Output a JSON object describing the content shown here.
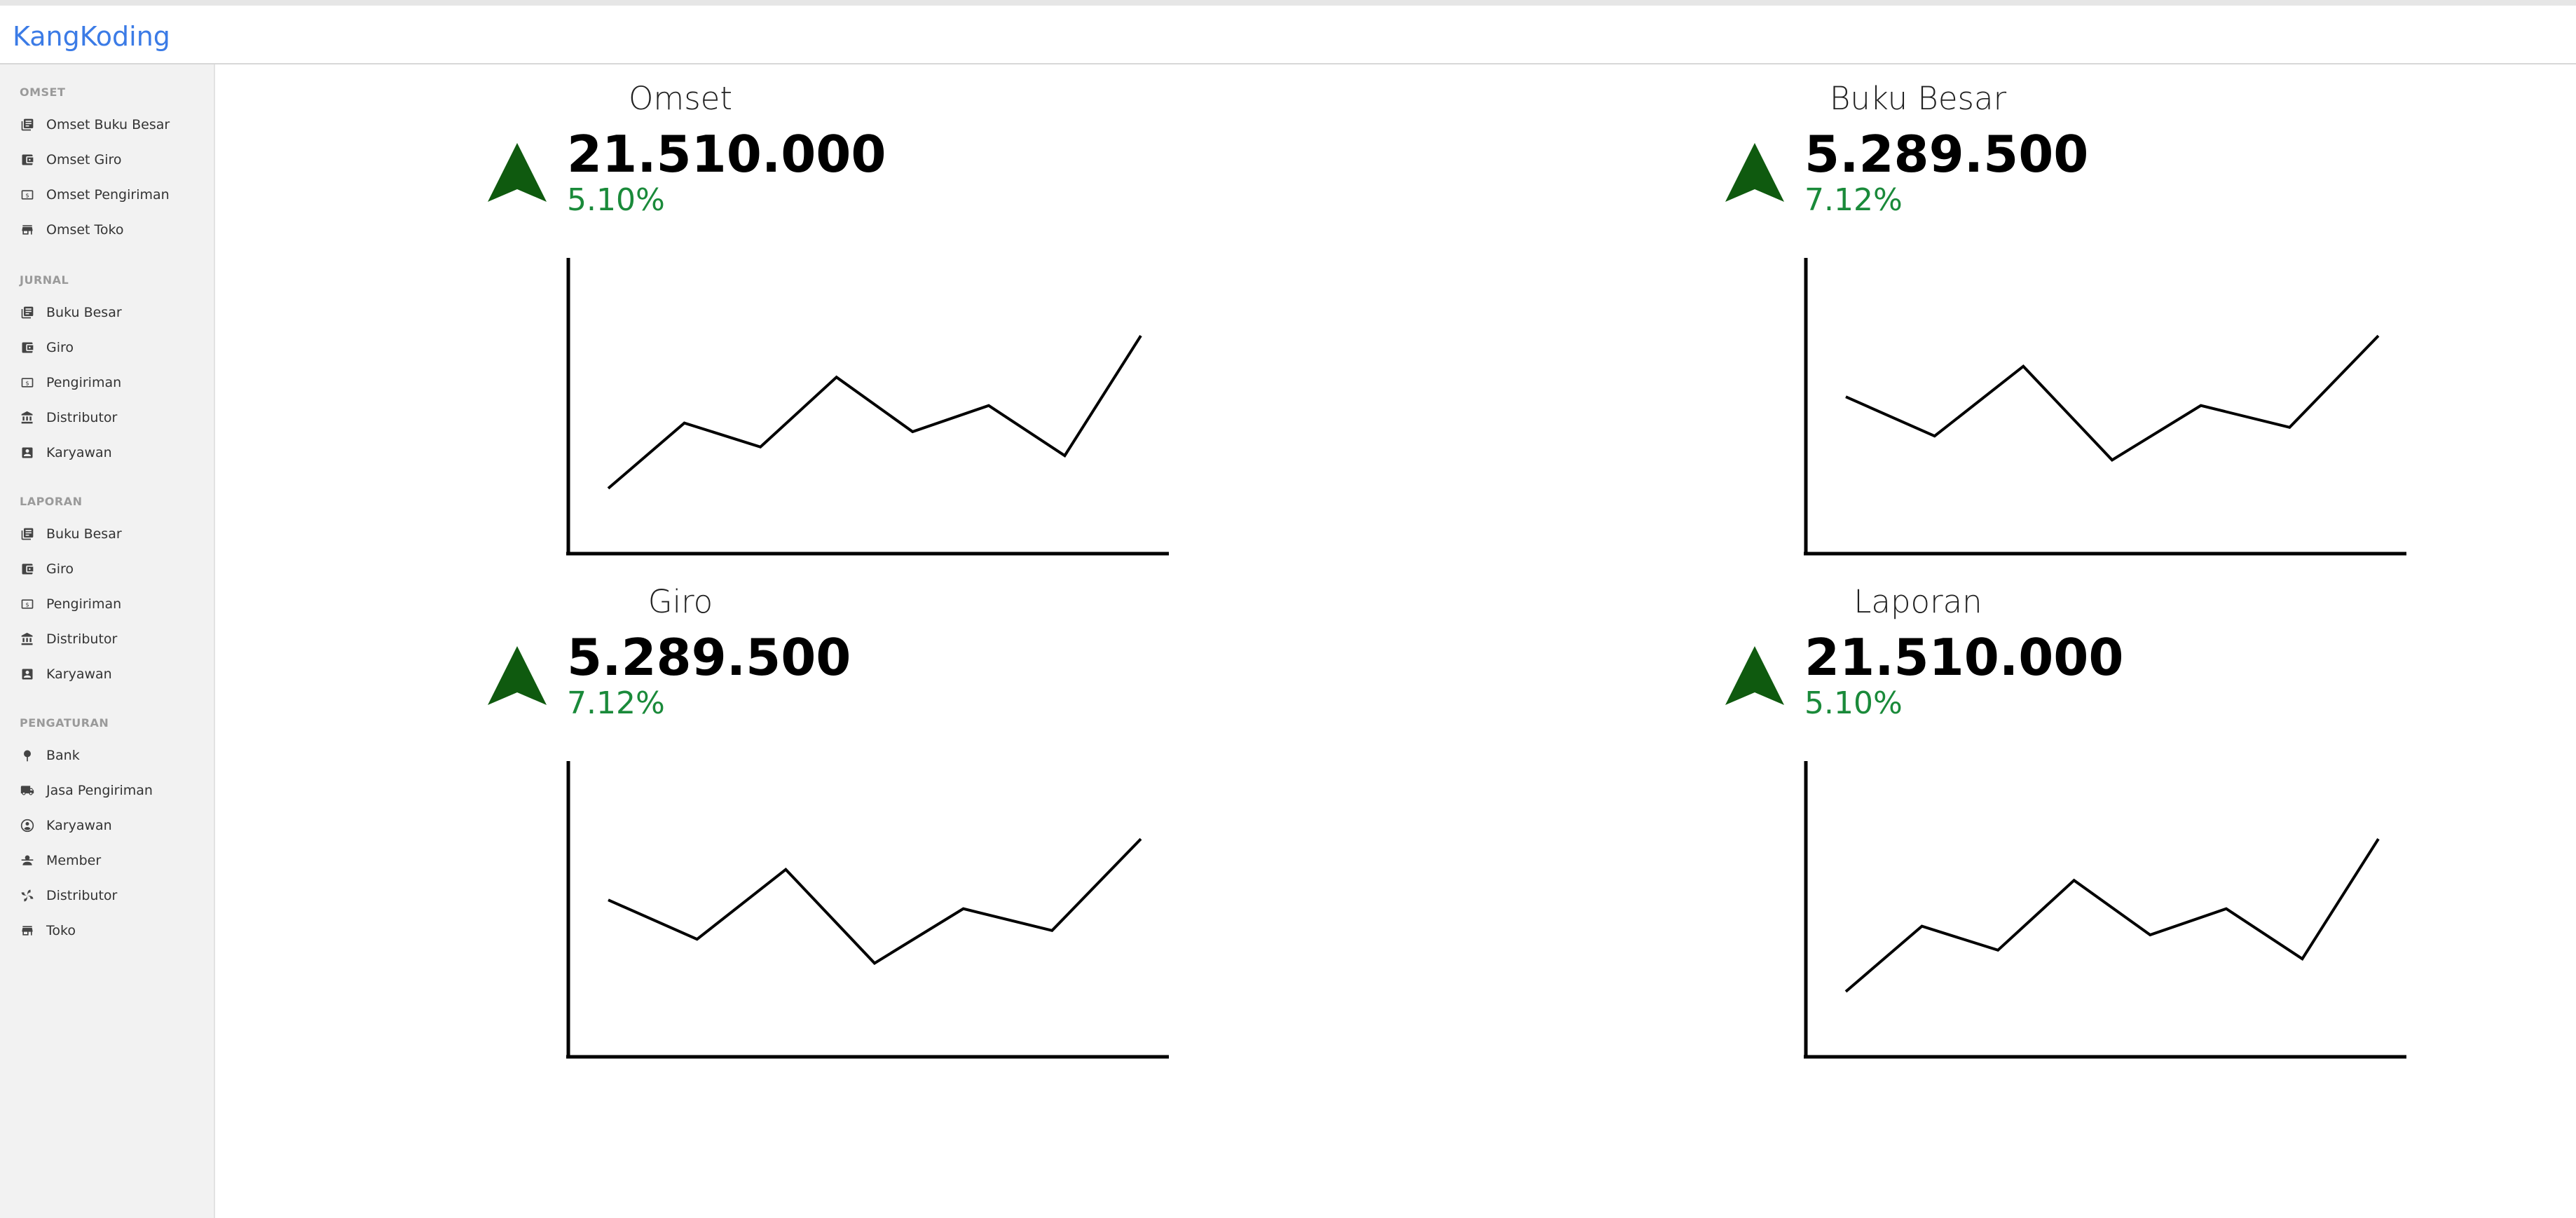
{
  "app": {
    "brand": "KangKoding",
    "accent": "#3b7be6"
  },
  "sidebar": {
    "sections": [
      {
        "title": "OMSET",
        "items": [
          {
            "label": "Omset Buku Besar",
            "icon": "book-icon"
          },
          {
            "label": "Omset Giro",
            "icon": "wallet-icon"
          },
          {
            "label": "Omset Pengiriman",
            "icon": "money-icon"
          },
          {
            "label": "Omset Toko",
            "icon": "store-icon"
          }
        ]
      },
      {
        "title": "JURNAL",
        "items": [
          {
            "label": "Buku Besar",
            "icon": "book-icon"
          },
          {
            "label": "Giro",
            "icon": "wallet-icon"
          },
          {
            "label": "Pengiriman",
            "icon": "money-icon"
          },
          {
            "label": "Distributor",
            "icon": "bank-icon"
          },
          {
            "label": "Karyawan",
            "icon": "badge-icon"
          }
        ]
      },
      {
        "title": "LAPORAN",
        "items": [
          {
            "label": "Buku Besar",
            "icon": "book-icon"
          },
          {
            "label": "Giro",
            "icon": "wallet-icon"
          },
          {
            "label": "Pengiriman",
            "icon": "money-icon"
          },
          {
            "label": "Distributor",
            "icon": "bank-icon"
          },
          {
            "label": "Karyawan",
            "icon": "badge-icon"
          }
        ]
      },
      {
        "title": "PENGATURAN",
        "items": [
          {
            "label": "Bank",
            "icon": "pin-icon"
          },
          {
            "label": "Jasa Pengiriman",
            "icon": "truck-icon"
          },
          {
            "label": "Karyawan",
            "icon": "account-icon"
          },
          {
            "label": "Member",
            "icon": "member-icon"
          },
          {
            "label": "Distributor",
            "icon": "fan-icon"
          },
          {
            "label": "Toko",
            "icon": "store-icon"
          }
        ]
      }
    ]
  },
  "panels": [
    {
      "title": "Omset",
      "value": "21.510.000",
      "percent": "5.10%",
      "trend_icon": "arrow-up-icon",
      "chart_data": {
        "type": "line",
        "values": [
          1,
          4,
          2.9,
          6.1,
          3.6,
          4.8,
          2.5,
          8
        ]
      }
    },
    {
      "title": "Buku Besar",
      "value": "5.289.500",
      "percent": "7.12%",
      "trend_icon": "arrow-up-icon",
      "chart_data": {
        "type": "line",
        "values": [
          5.2,
          3.4,
          6.6,
          2.3,
          4.8,
          3.8,
          8
        ]
      }
    },
    {
      "title": "Giro",
      "value": "5.289.500",
      "percent": "7.12%",
      "trend_icon": "arrow-up-icon",
      "chart_data": {
        "type": "line",
        "values": [
          5.2,
          3.4,
          6.6,
          2.3,
          4.8,
          3.8,
          8
        ]
      }
    },
    {
      "title": "Laporan",
      "value": "21.510.000",
      "percent": "5.10%",
      "trend_icon": "arrow-up-icon",
      "chart_data": {
        "type": "line",
        "values": [
          1,
          4,
          2.9,
          6.1,
          3.6,
          4.8,
          2.5,
          8
        ]
      }
    }
  ],
  "colors": {
    "trend_up": "#0f5a0f",
    "percent": "#1a8a3a"
  }
}
